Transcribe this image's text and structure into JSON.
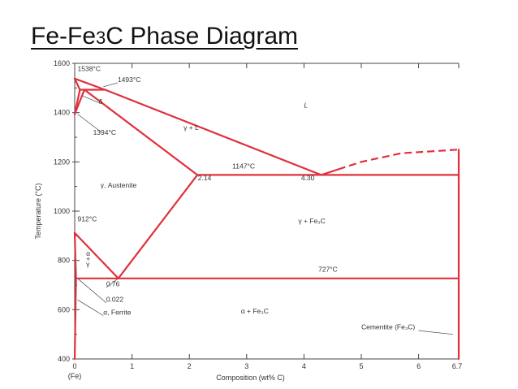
{
  "title": {
    "main": "Fe-Fe",
    "sub": "3",
    "rest": "C Phase Diagram"
  },
  "colors": {
    "phase_line": "#e0303c",
    "axis": "#444444"
  },
  "chart_data": {
    "type": "diagram",
    "xlabel": "Composition (wt% C)",
    "ylabel": "Temperature (°C)",
    "x_ticks": [
      "0",
      "1",
      "2",
      "3",
      "4",
      "5",
      "6",
      "6.7"
    ],
    "x_ends": {
      "left": "(Fe)"
    },
    "y_ticks": [
      "400",
      "600",
      "800",
      "1000",
      "1200",
      "1400",
      "1600"
    ],
    "xlim": [
      0,
      6.7
    ],
    "ylim": [
      400,
      1600
    ],
    "regions": [
      {
        "label": "L",
        "x": 4.0,
        "t": 1420,
        "italic": true
      },
      {
        "label": "γ + L",
        "x": 1.9,
        "t": 1330
      },
      {
        "label": "γ, Austenite",
        "x": 0.45,
        "t": 1095
      },
      {
        "label": "γ + Fe₃C",
        "x": 3.9,
        "t": 950
      },
      {
        "label": "α + Fe₃C",
        "x": 2.9,
        "t": 585
      },
      {
        "label": "δ",
        "x": 0.42,
        "t": 1435
      },
      {
        "label": "α",
        "x": 0.2,
        "t": 818
      },
      {
        "label": "+",
        "x": 0.2,
        "t": 797
      },
      {
        "label": "γ",
        "x": 0.2,
        "t": 776
      },
      {
        "label": "Cementite (Fe₃C)",
        "x": 5.0,
        "t": 520
      }
    ],
    "annotations": [
      {
        "label": "1538°C",
        "x": 0.05,
        "t": 1568
      },
      {
        "label": "1493°C",
        "x": 0.75,
        "t": 1525
      },
      {
        "label": "1394°C",
        "x": 0.32,
        "t": 1310
      },
      {
        "label": "912°C",
        "x": 0.05,
        "t": 958
      },
      {
        "label": "1147°C",
        "x": 2.75,
        "t": 1173
      },
      {
        "label": "2.14",
        "x": 2.15,
        "t": 1125
      },
      {
        "label": "4.30",
        "x": 3.95,
        "t": 1125
      },
      {
        "label": "727°C",
        "x": 4.25,
        "t": 755
      },
      {
        "label": "0.76",
        "x": 0.55,
        "t": 695
      },
      {
        "label": "0.022",
        "x": 0.55,
        "t": 632
      },
      {
        "label": "α, Ferrite",
        "x": 0.5,
        "t": 580
      }
    ],
    "lines": [
      {
        "name": "eutectic-isotherm",
        "points": [
          [
            2.14,
            1147
          ],
          [
            6.7,
            1147
          ]
        ]
      },
      {
        "name": "eutectoid-isotherm",
        "points": [
          [
            0.022,
            727
          ],
          [
            6.7,
            727
          ]
        ]
      },
      {
        "name": "liquidus-upper",
        "points": [
          [
            0.0,
            1538
          ],
          [
            0.53,
            1493
          ],
          [
            4.3,
            1147
          ]
        ]
      },
      {
        "name": "liquidus-delta",
        "points": [
          [
            0.0,
            1538
          ],
          [
            0.09,
            1493
          ]
        ]
      },
      {
        "name": "peritectic",
        "points": [
          [
            0.09,
            1493
          ],
          [
            0.53,
            1493
          ]
        ]
      },
      {
        "name": "delta-solvus",
        "points": [
          [
            0.0,
            1394
          ],
          [
            0.09,
            1493
          ]
        ]
      },
      {
        "name": "delta-gamma",
        "points": [
          [
            0.0,
            1394
          ],
          [
            0.17,
            1493
          ]
        ]
      },
      {
        "name": "solidus",
        "points": [
          [
            0.17,
            1493
          ],
          [
            2.14,
            1147
          ]
        ]
      },
      {
        "name": "acm",
        "points": [
          [
            2.14,
            1147
          ],
          [
            0.76,
            727
          ]
        ]
      },
      {
        "name": "a3",
        "points": [
          [
            0.0,
            912
          ],
          [
            0.76,
            727
          ]
        ]
      },
      {
        "name": "alpha-gamma",
        "points": [
          [
            0.0,
            912
          ],
          [
            0.022,
            727
          ]
        ]
      },
      {
        "name": "alpha-solvus",
        "points": [
          [
            0.022,
            727
          ],
          [
            0.0,
            400
          ]
        ]
      },
      {
        "name": "cementite-boundary",
        "points": [
          [
            6.7,
            400
          ],
          [
            6.7,
            1250
          ]
        ]
      },
      {
        "name": "fe3c-liquidus",
        "points": [
          [
            4.3,
            1147
          ],
          [
            5.0,
            1200
          ],
          [
            5.7,
            1235
          ],
          [
            6.7,
            1250
          ]
        ],
        "dashed_from": 4.6
      }
    ]
  }
}
